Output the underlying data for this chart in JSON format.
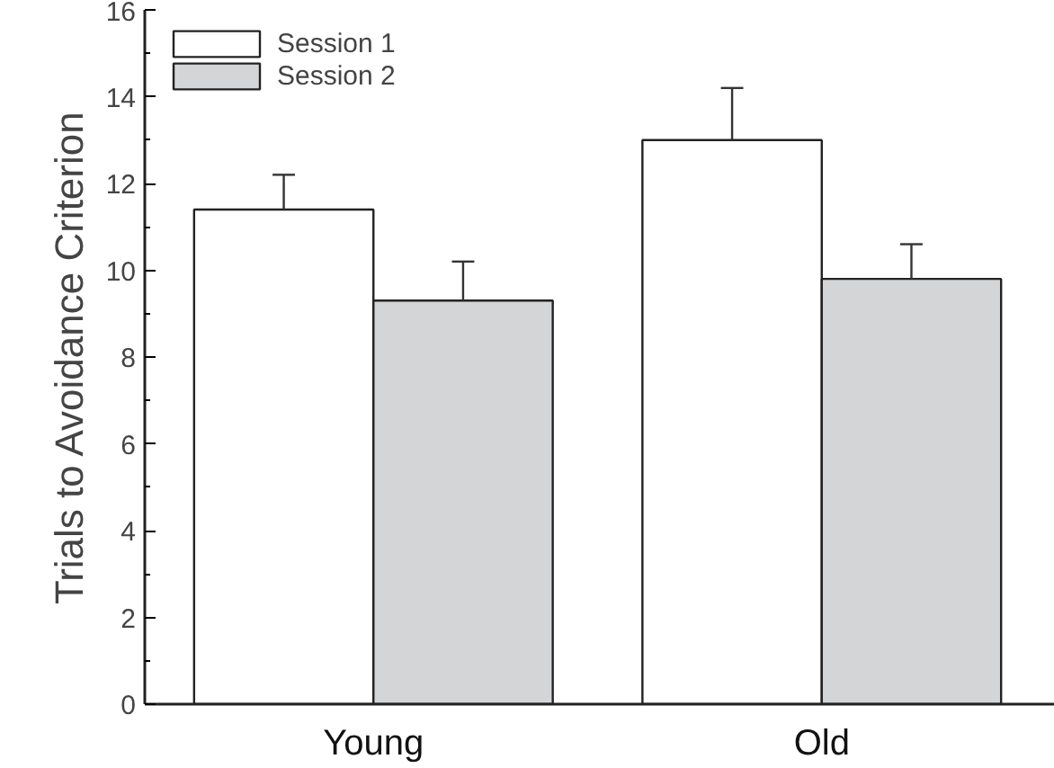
{
  "chart_data": {
    "type": "bar",
    "ylabel": "Trials to Avoidance Criterion",
    "categories": [
      "Young",
      "Old"
    ],
    "series": [
      {
        "name": "Session 1",
        "color": "#ffffff",
        "values": [
          11.4,
          13.0
        ],
        "errors": [
          [
            11.4,
            12.2
          ],
          [
            13.0,
            14.2
          ]
        ]
      },
      {
        "name": "Session 2",
        "color": "#d4d5d7",
        "values": [
          9.3,
          9.8
        ],
        "errors": [
          [
            9.3,
            10.2
          ],
          [
            9.8,
            10.6
          ]
        ]
      }
    ],
    "ylim": [
      0,
      16
    ],
    "yticks": [
      0,
      2,
      4,
      6,
      8,
      10,
      12,
      14,
      16
    ],
    "grid": false,
    "legend": "top left"
  }
}
